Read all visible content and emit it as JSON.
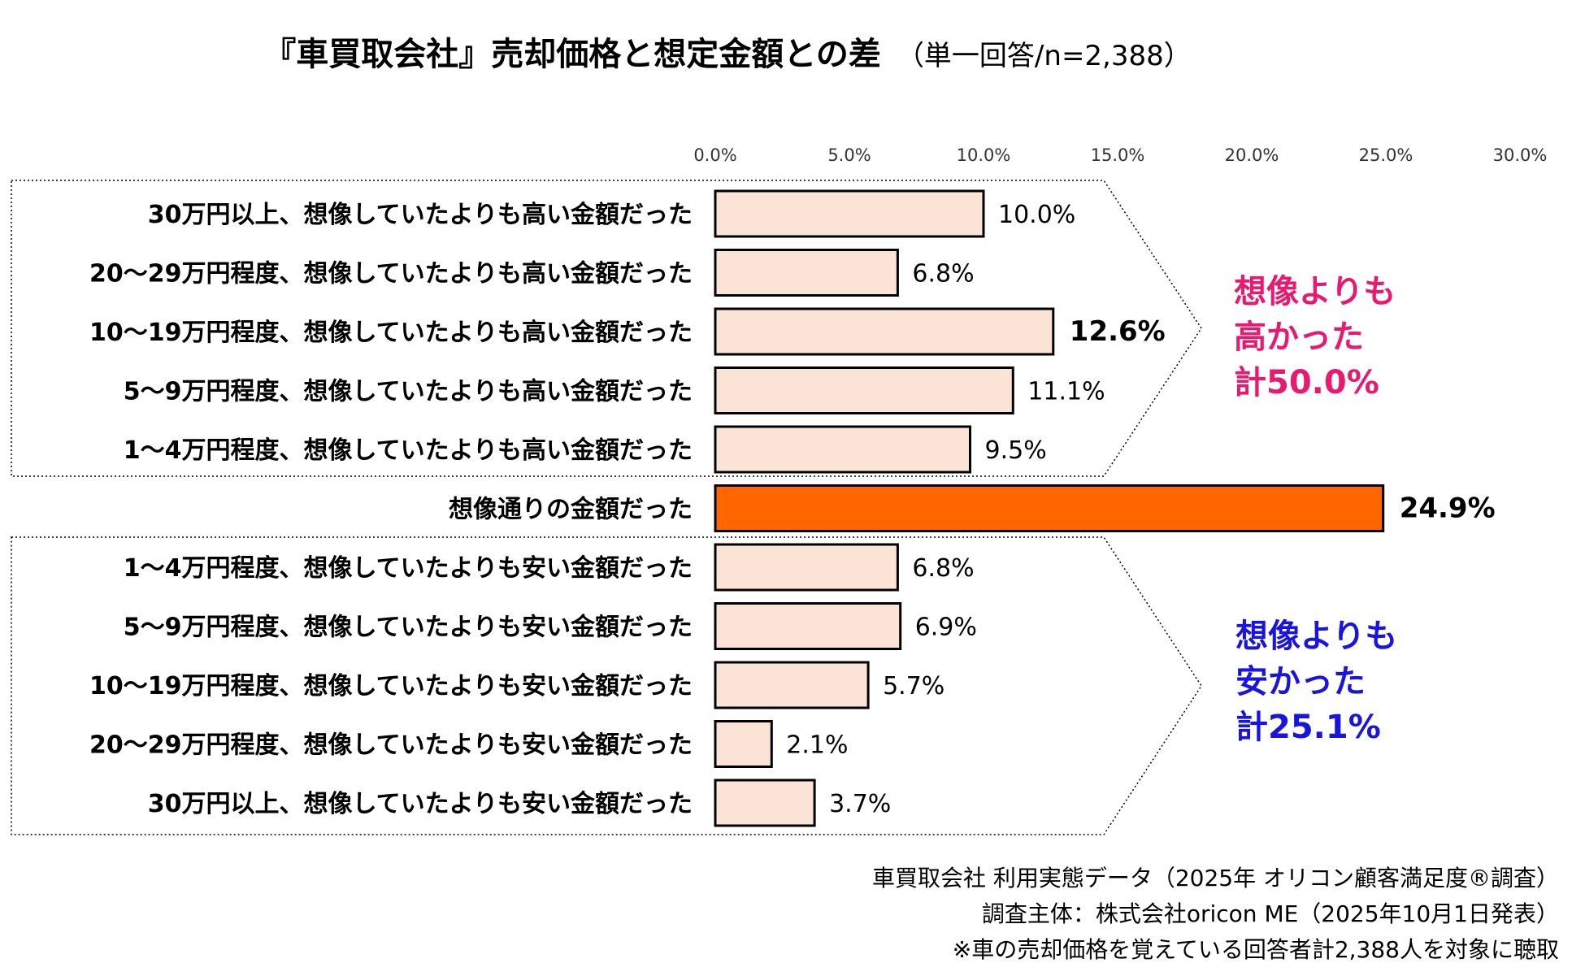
{
  "chart_data": {
    "type": "bar",
    "orientation": "horizontal",
    "title": "『車買取会社』売却価格と想定金額との差",
    "subtitle": "（単一回答/n=2,388）",
    "xlim": [
      0,
      30
    ],
    "x_ticks": [
      "0.0%",
      "5.0%",
      "10.0%",
      "15.0%",
      "20.0%",
      "25.0%",
      "30.0%"
    ],
    "grid": false,
    "categories": [
      "30万円以上、想像していたよりも高い金額だった",
      "20～29万円程度、想像していたよりも高い金額だった",
      "10～19万円程度、想像していたよりも高い金額だった",
      "5～9万円程度、想像していたよりも高い金額だった",
      "1～4万円程度、想像していたよりも高い金額だった",
      "想像通りの金額だった",
      "1～4万円程度、想像していたよりも安い金額だった",
      "5～9万円程度、想像していたよりも安い金額だった",
      "10～19万円程度、想像していたよりも安い金額だった",
      "20～29万円程度、想像していたよりも安い金額だった",
      "30万円以上、想像していたよりも安い金額だった"
    ],
    "values": [
      10.0,
      6.8,
      12.6,
      11.1,
      9.5,
      24.9,
      6.8,
      6.9,
      5.7,
      2.1,
      3.7
    ],
    "value_labels": [
      "10.0%",
      "6.8%",
      "12.6%",
      "11.1%",
      "9.5%",
      "24.9%",
      "6.8%",
      "6.9%",
      "5.7%",
      "2.1%",
      "3.7%"
    ],
    "bold_labels": [
      2,
      5
    ],
    "highlight_index": 5,
    "annotations": [
      {
        "lines": [
          "想像よりも",
          "高かった",
          "計50.0%"
        ],
        "color": "#e8196e",
        "group": "higher"
      },
      {
        "lines": [
          "想像よりも",
          "安かった",
          "計25.1%"
        ],
        "color": "#1a14e0",
        "group": "lower"
      }
    ],
    "colors": {
      "bar": "#fbe3d6",
      "highlight": "#ff6600",
      "border": "#000000"
    }
  },
  "footnotes": [
    "車買取会社 利用実態データ（2025年 オリコン顧客満足度®調査）",
    "調査主体：株式会社oricon ME（2025年10月1日発表）",
    "※車の売却価格を覚えている回答者計2,388人を対象に聴取"
  ]
}
